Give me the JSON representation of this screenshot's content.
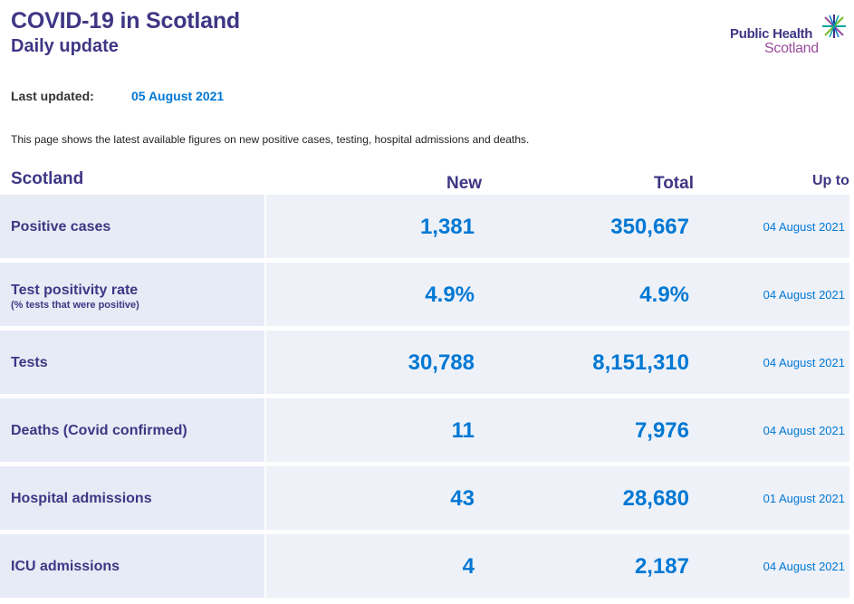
{
  "header": {
    "title": "COVID-19 in Scotland",
    "subtitle": "Daily update"
  },
  "logo": {
    "line1": "Public Health",
    "line2": "Scotland",
    "icon": "phs-star-icon"
  },
  "last_updated": {
    "label": "Last updated:",
    "value": "05 August 2021"
  },
  "intro": "This page shows the latest available figures on new positive cases, testing, hospital admissions and deaths.",
  "table": {
    "columns": {
      "region": "Scotland",
      "new": "New",
      "total": "Total",
      "upto": "Up to"
    },
    "rows": [
      {
        "label": "Positive cases",
        "sublabel": "",
        "new": "1,381",
        "total": "350,667",
        "upto": "04 August 2021"
      },
      {
        "label": "Test positivity rate",
        "sublabel": "(% tests that were positive)",
        "new": "4.9%",
        "total": "4.9%",
        "upto": "04 August 2021"
      },
      {
        "label": "Tests",
        "sublabel": "",
        "new": "30,788",
        "total": "8,151,310",
        "upto": "04 August 2021"
      },
      {
        "label": "Deaths (Covid confirmed)",
        "sublabel": "",
        "new": "11",
        "total": "7,976",
        "upto": "04 August 2021"
      },
      {
        "label": "Hospital admissions",
        "sublabel": "",
        "new": "43",
        "total": "28,680",
        "upto": "01 August 2021"
      },
      {
        "label": "ICU admissions",
        "sublabel": "",
        "new": "4",
        "total": "2,187",
        "upto": "04 August 2021"
      }
    ]
  },
  "colors": {
    "brand_purple": "#3f3685",
    "accent_blue": "#0078d4",
    "logo_magenta": "#9b4d9c"
  }
}
